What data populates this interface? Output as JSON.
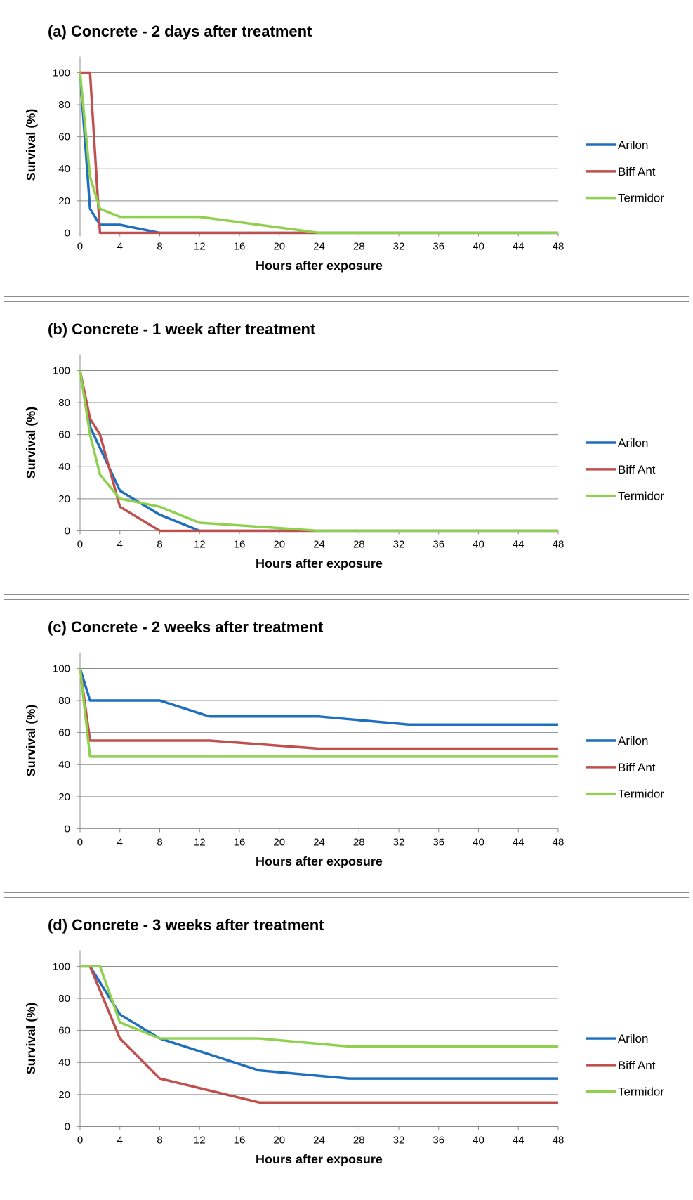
{
  "chart_data": [
    {
      "type": "line",
      "title": "(a)  Concrete - 2 days after treatment",
      "xlabel": "Hours after exposure",
      "ylabel": "Survival (%)",
      "xlim": [
        0,
        48
      ],
      "ylim": [
        0,
        110
      ],
      "xticks": [
        "0",
        "4",
        "8",
        "12",
        "16",
        "20",
        "24",
        "28",
        "32",
        "36",
        "40",
        "44",
        "48"
      ],
      "yticks": [
        "0",
        "20",
        "40",
        "60",
        "80",
        "100"
      ],
      "grid": true,
      "legend": "right",
      "series": [
        {
          "name": "Arilon",
          "color": "#1f6fbf",
          "points": [
            [
              0,
              100
            ],
            [
              1,
              15
            ],
            [
              2,
              5
            ],
            [
              4,
              5
            ],
            [
              8,
              0
            ],
            [
              48,
              0
            ]
          ]
        },
        {
          "name": "Biff Ant",
          "color": "#c0504d",
          "points": [
            [
              0,
              100
            ],
            [
              1,
              100
            ],
            [
              2,
              0
            ],
            [
              48,
              0
            ]
          ]
        },
        {
          "name": "Termidor",
          "color": "#8fd14f",
          "points": [
            [
              0,
              100
            ],
            [
              1,
              35
            ],
            [
              2,
              15
            ],
            [
              4,
              10
            ],
            [
              12,
              10
            ],
            [
              24,
              0
            ],
            [
              48,
              0
            ]
          ]
        }
      ]
    },
    {
      "type": "line",
      "title": "(b)  Concrete - 1 week after treatment",
      "xlabel": "Hours after exposure",
      "ylabel": "Survival (%)",
      "xlim": [
        0,
        48
      ],
      "ylim": [
        0,
        110
      ],
      "xticks": [
        "0",
        "4",
        "8",
        "12",
        "16",
        "20",
        "24",
        "28",
        "32",
        "36",
        "40",
        "44",
        "48"
      ],
      "yticks": [
        "0",
        "20",
        "40",
        "60",
        "80",
        "100"
      ],
      "grid": true,
      "legend": "right",
      "series": [
        {
          "name": "Arilon",
          "color": "#1f6fbf",
          "points": [
            [
              0,
              100
            ],
            [
              1,
              65
            ],
            [
              4,
              25
            ],
            [
              8,
              10
            ],
            [
              12,
              0
            ],
            [
              48,
              0
            ]
          ]
        },
        {
          "name": "Biff Ant",
          "color": "#c0504d",
          "points": [
            [
              0,
              100
            ],
            [
              1,
              70
            ],
            [
              2,
              60
            ],
            [
              4,
              15
            ],
            [
              8,
              0
            ],
            [
              48,
              0
            ]
          ]
        },
        {
          "name": "Termidor",
          "color": "#8fd14f",
          "points": [
            [
              0,
              100
            ],
            [
              1,
              60
            ],
            [
              2,
              35
            ],
            [
              4,
              20
            ],
            [
              8,
              15
            ],
            [
              12,
              5
            ],
            [
              24,
              0
            ],
            [
              48,
              0
            ]
          ]
        }
      ]
    },
    {
      "type": "line",
      "title": "(c)  Concrete - 2 weeks after treatment",
      "xlabel": "Hours after exposure",
      "ylabel": "Survival (%)",
      "xlim": [
        0,
        48
      ],
      "ylim": [
        0,
        110
      ],
      "xticks": [
        "0",
        "4",
        "8",
        "12",
        "16",
        "20",
        "24",
        "28",
        "32",
        "36",
        "40",
        "44",
        "48"
      ],
      "yticks": [
        "0",
        "20",
        "40",
        "60",
        "80",
        "100"
      ],
      "grid": true,
      "legend": "right",
      "series": [
        {
          "name": "Arilon",
          "color": "#1f6fbf",
          "points": [
            [
              0,
              100
            ],
            [
              1,
              80
            ],
            [
              8,
              80
            ],
            [
              13,
              70
            ],
            [
              24,
              70
            ],
            [
              33,
              65
            ],
            [
              48,
              65
            ]
          ]
        },
        {
          "name": "Biff Ant",
          "color": "#c0504d",
          "points": [
            [
              0,
              100
            ],
            [
              1,
              55
            ],
            [
              13,
              55
            ],
            [
              24,
              50
            ],
            [
              48,
              50
            ]
          ]
        },
        {
          "name": "Termidor",
          "color": "#8fd14f",
          "points": [
            [
              0,
              100
            ],
            [
              1,
              45
            ],
            [
              48,
              45
            ]
          ]
        }
      ]
    },
    {
      "type": "line",
      "title": "(d)  Concrete - 3 weeks after treatment",
      "xlabel": "Hours after exposure",
      "ylabel": "Survival (%)",
      "xlim": [
        0,
        48
      ],
      "ylim": [
        0,
        110
      ],
      "xticks": [
        "0",
        "4",
        "8",
        "12",
        "16",
        "20",
        "24",
        "28",
        "32",
        "36",
        "40",
        "44",
        "48"
      ],
      "yticks": [
        "0",
        "20",
        "40",
        "60",
        "80",
        "100"
      ],
      "grid": true,
      "legend": "right",
      "series": [
        {
          "name": "Arilon",
          "color": "#1f6fbf",
          "points": [
            [
              0,
              100
            ],
            [
              1,
              100
            ],
            [
              4,
              70
            ],
            [
              8,
              55
            ],
            [
              18,
              35
            ],
            [
              27,
              30
            ],
            [
              48,
              30
            ]
          ]
        },
        {
          "name": "Biff Ant",
          "color": "#c0504d",
          "points": [
            [
              0,
              100
            ],
            [
              1,
              100
            ],
            [
              4,
              55
            ],
            [
              8,
              30
            ],
            [
              18,
              15
            ],
            [
              48,
              15
            ]
          ]
        },
        {
          "name": "Termidor",
          "color": "#8fd14f",
          "points": [
            [
              0,
              100
            ],
            [
              2,
              100
            ],
            [
              4,
              65
            ],
            [
              8,
              55
            ],
            [
              18,
              55
            ],
            [
              27,
              50
            ],
            [
              48,
              50
            ]
          ]
        }
      ]
    }
  ]
}
